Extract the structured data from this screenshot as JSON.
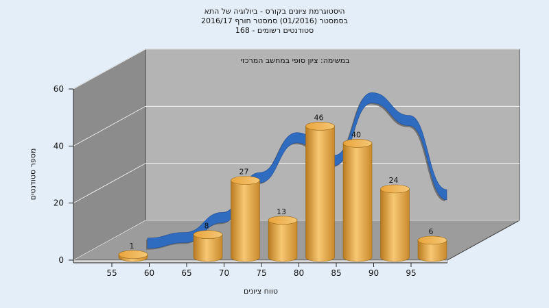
{
  "header": {
    "line1": "היסטוגרמת ציונים בקורס - ביולוגיה של התא",
    "line2": "בסמסטר  (01/2016)  סמסטר חורף 2016/17",
    "line3": "סטודנטים רשומים - 168"
  },
  "colors": {
    "background": "#e3eef8",
    "bar": "#e8a83e",
    "curve": "#2f6bbf",
    "left_wall": "#8c8c8c",
    "back_wall": "#b4b4b4",
    "floor": "#9c9c9c"
  },
  "chart_data": {
    "type": "bar",
    "subtitle": "במשימה: ציון סופי במחשב המרכזי",
    "xlabel": "טווח ציונים",
    "ylabel": "מספר סטודנטים",
    "x_ticks": [
      "55",
      "60",
      "65",
      "70",
      "75",
      "80",
      "85",
      "90",
      "95"
    ],
    "y_ticks": [
      "0",
      "20",
      "40",
      "60"
    ],
    "ylim": [
      0,
      60
    ],
    "grid": true,
    "bars": [
      {
        "x": 55,
        "value": 1,
        "label": "1"
      },
      {
        "x": 65,
        "value": 8,
        "label": "8"
      },
      {
        "x": 70,
        "value": 27,
        "label": "27"
      },
      {
        "x": 75,
        "value": 13,
        "label": "13"
      },
      {
        "x": 80,
        "value": 46,
        "label": "46"
      },
      {
        "x": 85,
        "value": 40,
        "label": "40"
      },
      {
        "x": 90,
        "value": 24,
        "label": "24"
      },
      {
        "x": 95,
        "value": 6,
        "label": "6"
      }
    ],
    "curve": {
      "type": "normal-distribution-ribbon",
      "x": [
        55,
        60,
        65,
        70,
        75,
        80,
        85,
        90,
        95
      ],
      "y": [
        1,
        3,
        10,
        24,
        38,
        30,
        52,
        44,
        18
      ]
    }
  }
}
